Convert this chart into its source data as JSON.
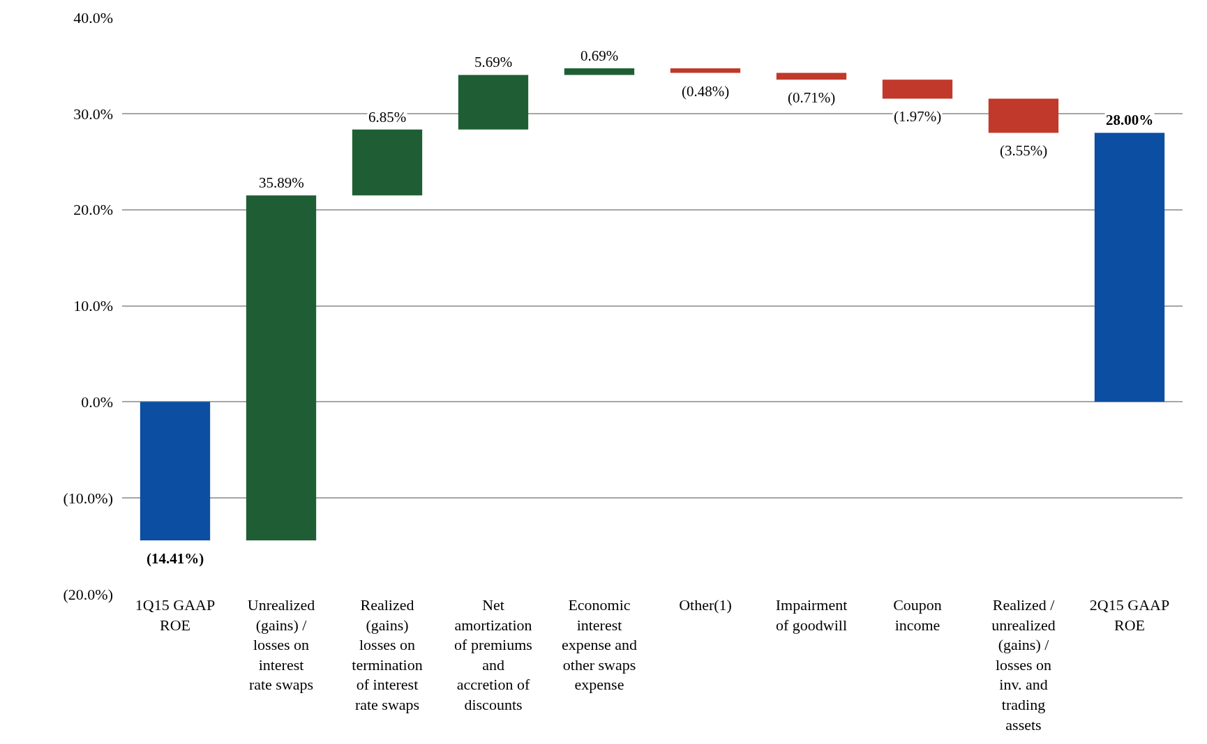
{
  "chart_data": {
    "type": "bar",
    "categories": [
      "1Q15 GAAP ROE",
      "Unrealized (gains) / losses on interest rate swaps",
      "Realized (gains) losses on termination of interest rate swaps",
      "Net amortization of premiums and accretion of discounts",
      "Economic interest expense and other swaps expense",
      "Other(1)",
      "Impairment of goodwill",
      "Coupon income",
      "Realized / unrealized (gains) / losses on inv. and trading assets",
      "2Q15 GAAP ROE"
    ],
    "values": [
      -14.41,
      35.89,
      6.85,
      5.69,
      0.69,
      -0.48,
      -0.71,
      -1.97,
      -3.55,
      28.0
    ],
    "base": [
      0,
      -14.41,
      21.48,
      28.33,
      34.02,
      34.71,
      34.23,
      33.52,
      31.55,
      0
    ],
    "colors": [
      "#0b4ea2",
      "#1f5e34",
      "#1f5e34",
      "#1f5e34",
      "#1f5e34",
      "#c0392b",
      "#c0392b",
      "#c0392b",
      "#c0392b",
      "#0b4ea2"
    ],
    "value_labels": [
      "(14.41%)",
      "35.89%",
      "6.85%",
      "5.69%",
      "0.69%",
      "(0.48%)",
      "(0.71%)",
      "(1.97%)",
      "(3.55%)",
      "28.00%"
    ],
    "ylim": [
      -20,
      40
    ],
    "yticks": [
      {
        "value": -20,
        "label": "(20.0%)"
      },
      {
        "value": -10,
        "label": "(10.0%)"
      },
      {
        "value": 0,
        "label": "0.0%"
      },
      {
        "value": 10,
        "label": "10.0%"
      },
      {
        "value": 20,
        "label": "20.0%"
      },
      {
        "value": 30,
        "label": "30.0%"
      },
      {
        "value": 40,
        "label": "40.0%"
      }
    ],
    "grid": "y"
  }
}
